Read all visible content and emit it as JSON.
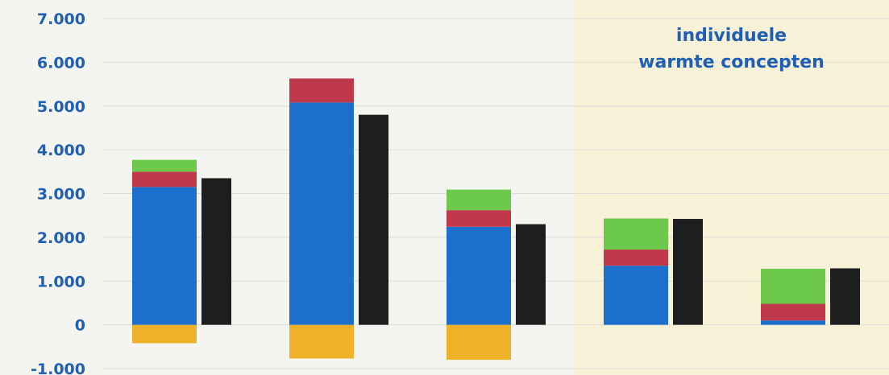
{
  "chart_data": {
    "type": "bar",
    "stacked": true,
    "categories": [
      "",
      "",
      "",
      "",
      ""
    ],
    "ylim": [
      -1000,
      7000
    ],
    "yticks": [
      7000,
      6000,
      5000,
      4000,
      3000,
      2000,
      1000,
      0,
      -1000
    ],
    "ytick_labels": [
      "7.000",
      "6.000",
      "5.000",
      "4.000",
      "3.000",
      "2.000",
      "1.000",
      "0",
      "-1.000"
    ],
    "grid": true,
    "legend": "none",
    "stack_series": [
      {
        "color": "#f0b12a",
        "values": [
          -420,
          -770,
          -800,
          0,
          0
        ]
      },
      {
        "color": "#1c6fcc",
        "values": [
          3150,
          5080,
          2240,
          1350,
          100
        ]
      },
      {
        "color": "#c0394a",
        "values": [
          350,
          550,
          380,
          370,
          380
        ]
      },
      {
        "color": "#6cc94c",
        "values": [
          270,
          0,
          470,
          710,
          800
        ]
      }
    ],
    "total_series": {
      "color": "#1e1e1e",
      "values": [
        3350,
        4800,
        2300,
        2420,
        1290
      ]
    },
    "highlight": {
      "from_category_index": 3,
      "color": "#f7f1d8",
      "label_lines": [
        "individuele",
        "warmte concepten"
      ]
    }
  }
}
